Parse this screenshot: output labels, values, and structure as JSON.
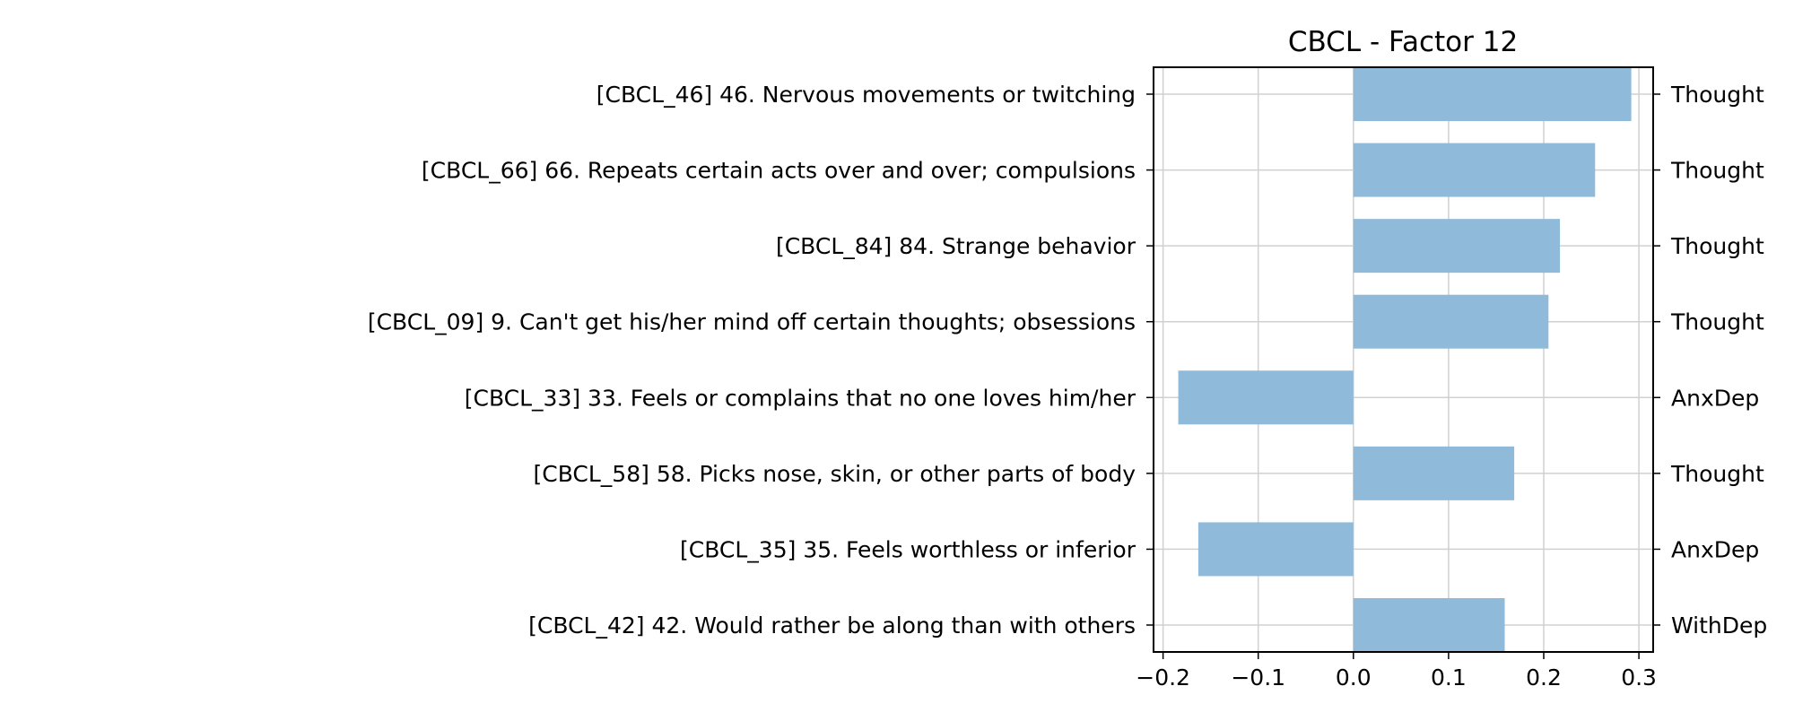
{
  "chart_data": {
    "type": "bar",
    "orientation": "horizontal",
    "title": "CBCL - Factor 12",
    "xlabel": "",
    "ylabel": "",
    "xlim": [
      -0.21,
      0.315
    ],
    "x_ticks": [
      -0.2,
      -0.1,
      0.0,
      0.1,
      0.2,
      0.3
    ],
    "x_tick_labels": [
      "−0.2",
      "−0.1",
      "0.0",
      "0.1",
      "0.2",
      "0.3"
    ],
    "grid": true,
    "bar_color": "#8fbada",
    "categories": [
      "[CBCL_46] 46. Nervous movements or twitching",
      "[CBCL_66] 66. Repeats certain acts over and over; compulsions",
      "[CBCL_84] 84. Strange behavior",
      "[CBCL_09] 9. Can't get his/her mind off certain thoughts; obsessions",
      "[CBCL_33] 33. Feels or complains that no one loves him/her",
      "[CBCL_58] 58. Picks nose, skin, or other parts of body",
      "[CBCL_35] 35. Feels worthless or inferior",
      "[CBCL_42] 42. Would rather be along than with others"
    ],
    "values": [
      0.292,
      0.254,
      0.217,
      0.205,
      -0.184,
      0.169,
      -0.163,
      0.159
    ],
    "right_labels": [
      "Thought",
      "Thought",
      "Thought",
      "Thought",
      "AnxDep",
      "Thought",
      "AnxDep",
      "WithDep"
    ]
  }
}
